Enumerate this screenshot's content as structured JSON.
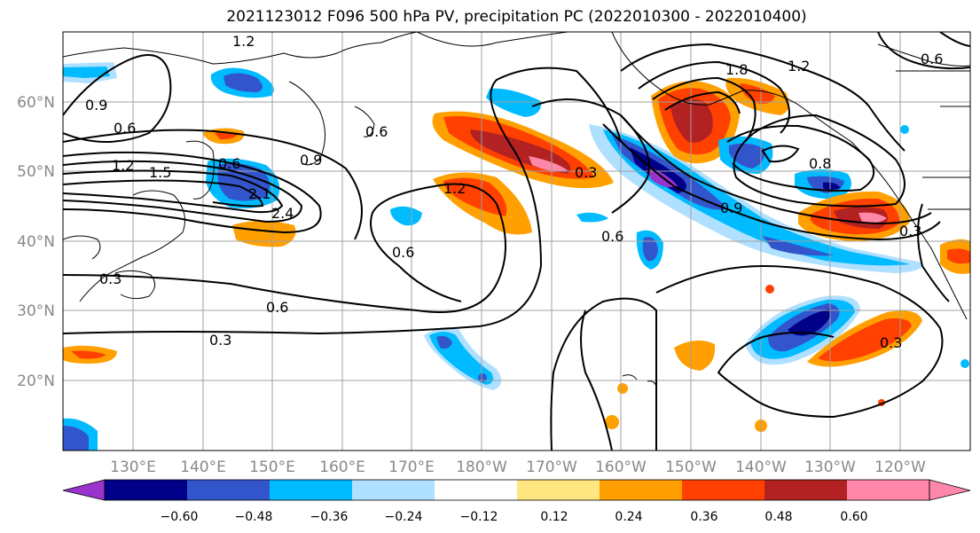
{
  "title": "2021123012 F096 500 hPa PV, precipitation PC (2022010300 - 2022010400)",
  "lat_labels": [
    "60°N",
    "50°N",
    "40°N",
    "30°N",
    "20°N"
  ],
  "lon_labels": [
    "130°E",
    "140°E",
    "150°E",
    "160°E",
    "170°E",
    "180°W",
    "170°W",
    "160°W",
    "150°W",
    "140°W",
    "130°W",
    "120°W"
  ],
  "contour_labels": [
    "1.2",
    "0.9",
    "0.6",
    "1.2",
    "1.5",
    "0.6",
    "2.1",
    "2.4",
    "0.9",
    "0.6",
    "0.6",
    "0.3",
    "0.6",
    "0.3",
    "1.2",
    "0.6",
    "0.3",
    "1.8",
    "0.9",
    "1.2",
    "0.8",
    "0.3",
    "0.3",
    "0.6"
  ],
  "colorbar": {
    "ticks": [
      "−0.60",
      "−0.48",
      "−0.36",
      "−0.24",
      "−0.12",
      "0.12",
      "0.24",
      "0.36",
      "0.48",
      "0.60"
    ],
    "colors": [
      "#9a33cc",
      "#000088",
      "#3355cc",
      "#00bbff",
      "#b0e0ff",
      "#ffffff",
      "#ffe680",
      "#ffa000",
      "#ff4000",
      "#b22222",
      "#ff88aa",
      "#ff88aa"
    ]
  },
  "palette": {
    "purple": "#9a33cc",
    "navy": "#000088",
    "blue": "#3355cc",
    "cyan": "#00bbff",
    "light_blue": "#b0e0ff",
    "yellow": "#ffe680",
    "orange": "#ffa000",
    "red_orange": "#ff4000",
    "dark_red": "#b22222",
    "pink": "#ff88aa"
  }
}
